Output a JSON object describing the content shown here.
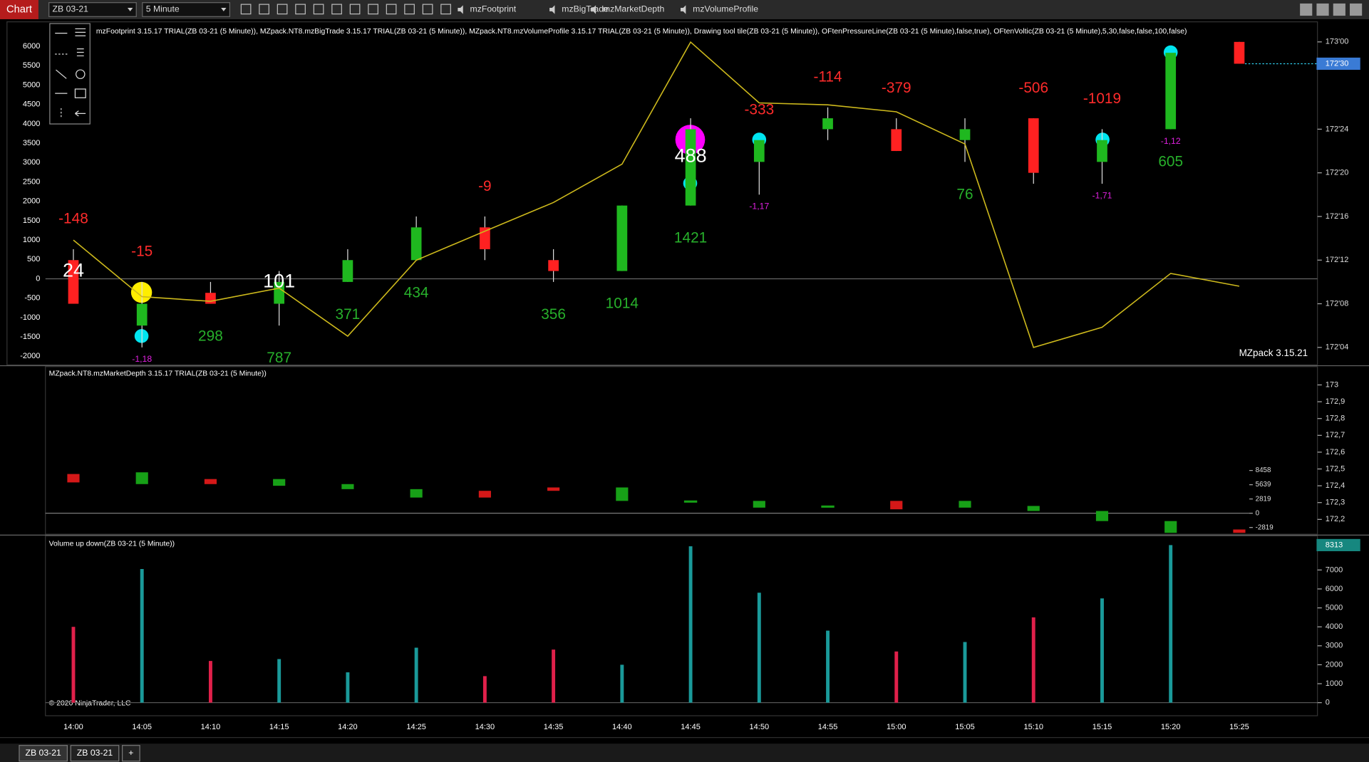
{
  "toolbar": {
    "title": "Chart",
    "instrument": "ZB 03-21",
    "interval": "5 Minute",
    "buttons": [
      "mzFootprint",
      "mzBigTrade",
      "mzMarketDepth",
      "mzVolumeProfile"
    ]
  },
  "tabs": [
    "ZB 03-21",
    "ZB 03-21",
    "+"
  ],
  "chart_data": [
    {
      "type": "candlestick",
      "title": "mzFootprint 3.15.17 TRIAL(ZB 03-21 (5 Minute)), MZpack.NT8.mzBigTrade 3.15.17 TRIAL(ZB 03-21 (5 Minute)), MZpack.NT8.mzVolumeProfile 3.15.17 TRIAL(ZB 03-21 (5 Minute)), Drawing tool tile(ZB 03-21 (5 Minute)), OFtenPressureLine(ZB 03-21 (5 Minute),false,true), OFtenVoltic(ZB 03-21 (5 Minute),5,30,false,false,100,false)",
      "watermark": "MZpack 3.15.21",
      "open": [
        172.375,
        172.1875,
        172.28125,
        172.25,
        172.3125,
        172.375,
        172.46875,
        172.375,
        172.34375,
        172.53125,
        172.65625,
        172.75,
        172.75,
        172.71875,
        172.78125,
        172.65625,
        172.75,
        173
      ],
      "high": [
        172.40625,
        172.3125,
        172.3125,
        172.34375,
        172.40625,
        172.5,
        172.5,
        172.40625,
        172.53125,
        172.78125,
        172.71875,
        172.8125,
        172.78125,
        172.78125,
        172.78125,
        172.75,
        172.96875,
        173
      ],
      "low": [
        172.25,
        172.125,
        172.25,
        172.1875,
        172.3125,
        172.375,
        172.375,
        172.3125,
        172.34375,
        172.53125,
        172.5625,
        172.71875,
        172.6875,
        172.65625,
        172.59375,
        172.59375,
        172.75,
        172.9375
      ],
      "close": [
        172.25,
        172.25,
        172.25,
        172.3125,
        172.375,
        172.46875,
        172.40625,
        172.34375,
        172.53125,
        172.75,
        172.71875,
        172.78125,
        172.6875,
        172.75,
        172.625,
        172.71875,
        172.96875,
        172.9375
      ],
      "up_color": "#1fb81f",
      "down_color": "#ff2121",
      "delta": [
        -148,
        -15,
        null,
        null,
        null,
        null,
        -9,
        null,
        null,
        null,
        -333,
        -114,
        -379,
        null,
        -506,
        -1019,
        null,
        null
      ],
      "total": [
        null,
        null,
        298,
        787,
        371,
        434,
        null,
        356,
        1014,
        1421,
        null,
        null,
        null,
        76,
        null,
        null,
        605,
        null
      ],
      "big": [
        24,
        null,
        null,
        101,
        null,
        null,
        null,
        null,
        null,
        488,
        null,
        null,
        null,
        null,
        null,
        null,
        null,
        null
      ],
      "min_delta": [
        null,
        "-1,18",
        null,
        null,
        null,
        null,
        null,
        null,
        null,
        null,
        "-1,17",
        null,
        null,
        null,
        null,
        "-1,71",
        "-1,12",
        null
      ],
      "ylim": [
        172.075,
        173.055
      ],
      "yticks": [
        {
          "value": 173,
          "label": "173'00"
        },
        {
          "value": 172.75,
          "label": "172'24"
        },
        {
          "value": 172.625,
          "label": "172'20"
        },
        {
          "value": 172.5,
          "label": "172'16"
        },
        {
          "value": 172.375,
          "label": "172'12"
        },
        {
          "value": 172.25,
          "label": "172'08"
        },
        {
          "value": 172.125,
          "label": "172'04"
        }
      ],
      "last_price": {
        "value": 172.9375,
        "label": "172'30"
      },
      "line": {
        "color": "#cdb91c",
        "axis": "y2",
        "values": [
          1000,
          -460,
          -580,
          -240,
          -1480,
          480,
          1230,
          1970,
          2960,
          6110,
          4540,
          4490,
          4310,
          3480,
          -1770,
          -1250,
          140,
          -190
        ]
      },
      "y2lim": [
        -2220,
        6610
      ],
      "y2ticks": [
        6000,
        5500,
        5000,
        4500,
        4000,
        3500,
        3000,
        2500,
        2000,
        1500,
        1000,
        500,
        0,
        -500,
        -1000,
        -1500,
        -2000
      ]
    },
    {
      "type": "candlestick",
      "title": "MZpack.NT8.mzMarketDepth 3.15.17 TRIAL(ZB 03-21 (5 Minute))",
      "open": [
        172.47,
        172.41,
        172.44,
        172.4,
        172.38,
        172.33,
        172.37,
        172.39,
        172.31,
        172.31,
        172.27,
        172.28,
        172.31,
        172.27,
        172.25,
        172.19,
        172.12,
        172.14
      ],
      "close": [
        172.42,
        172.48,
        172.41,
        172.44,
        172.41,
        172.38,
        172.33,
        172.37,
        172.39,
        172.31,
        172.31,
        172.28,
        172.26,
        172.31,
        172.28,
        172.25,
        172.19,
        172.12
      ],
      "up_color": "#17a017",
      "down_color": "#d41818",
      "ylim": [
        172.112,
        173.109
      ],
      "yticks": [
        173,
        {
          "value": 172.9,
          "label": "172,9"
        },
        {
          "value": 172.8,
          "label": "172,8"
        },
        {
          "value": 172.7,
          "label": "172,7"
        },
        {
          "value": 172.6,
          "label": "172,6"
        },
        {
          "value": 172.5,
          "label": "172,5"
        },
        {
          "value": 172.4,
          "label": "172,4"
        },
        {
          "value": 172.3,
          "label": "172,3"
        },
        {
          "value": 172.2,
          "label": "172,2"
        }
      ],
      "y2lim": [
        -4143,
        29001
      ],
      "y2ticks": [
        8458,
        5639,
        2819,
        0,
        -2819
      ]
    },
    {
      "type": "bar",
      "title": "Volume up down(ZB 03-21 (5 Minute))",
      "footer": "© 2020 NinjaTrader, LLC",
      "x": [
        "14:00",
        "14:05",
        "14:10",
        "14:15",
        "14:20",
        "14:25",
        "14:30",
        "14:35",
        "14:40",
        "14:45",
        "14:50",
        "14:55",
        "15:00",
        "15:05",
        "15:10",
        "15:15",
        "15:20",
        "15:25"
      ],
      "values": [
        4000,
        7050,
        2200,
        2300,
        1600,
        2900,
        1400,
        2800,
        2000,
        8250,
        5800,
        3800,
        2700,
        3200,
        4500,
        5500,
        8313,
        null
      ],
      "colors": [
        "#e0204a",
        "#1a9a9a",
        "#e0204a",
        "#1a9a9a",
        "#1a9a9a",
        "#1a9a9a",
        "#e0204a",
        "#e0204a",
        "#1a9a9a",
        "#1a9a9a",
        "#1a9a9a",
        "#1a9a9a",
        "#e0204a",
        "#1a9a9a",
        "#e0204a",
        "#1a9a9a",
        "#1a9a9a",
        null
      ],
      "ylim": [
        -690,
        8750
      ],
      "yticks": [
        0,
        1000,
        2000,
        3000,
        4000,
        5000,
        6000,
        7000
      ]
    }
  ]
}
